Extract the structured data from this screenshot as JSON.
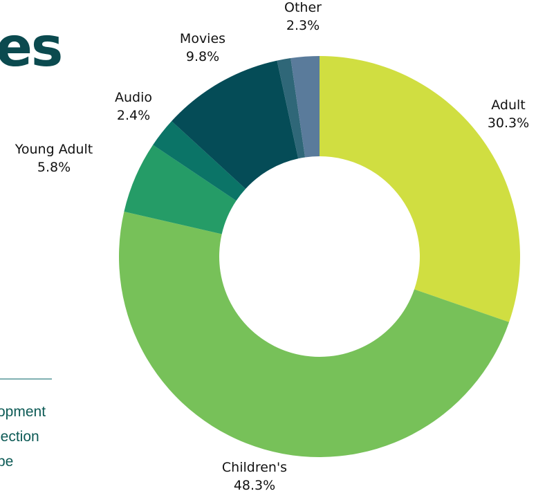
{
  "heading_fragment": "es",
  "side_text": {
    "lines": [
      "opment",
      "lection",
      "be"
    ]
  },
  "chart_data": {
    "type": "pie",
    "variant": "donut",
    "title": "",
    "slices": [
      {
        "label": "Adult",
        "value": 30.3,
        "display": "30.3%",
        "color": "#d0de41"
      },
      {
        "label": "Children's",
        "value": 48.3,
        "display": "48.3%",
        "color": "#77c159"
      },
      {
        "label": "Young Adult",
        "value": 5.8,
        "display": "5.8%",
        "color": "#259c67"
      },
      {
        "label": "Audio",
        "value": 2.4,
        "display": "2.4%",
        "color": "#0b7467"
      },
      {
        "label": "Movies",
        "value": 9.8,
        "display": "9.8%",
        "color": "#054c57"
      },
      {
        "label": "",
        "value": 1.1,
        "display": "",
        "color": "#2f6778"
      },
      {
        "label": "Other",
        "value": 2.3,
        "display": "2.3%",
        "color": "#5a7b9b"
      }
    ],
    "start_angle_deg": 0,
    "direction": "clockwise",
    "legend": "none"
  }
}
